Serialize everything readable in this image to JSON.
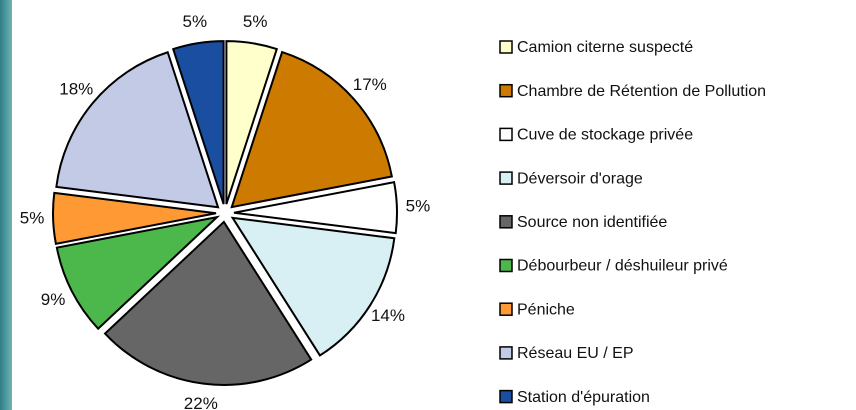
{
  "chart_data": {
    "type": "pie",
    "categories": [
      "Camion citerne suspecté",
      "Chambre de Rétention de Pollution",
      "Cuve de stockage privée",
      "Déversoir d'orage",
      "Source non identifiée",
      "Débourbeur / déshuileur privé",
      "Péniche",
      "Réseau EU / EP",
      "Station d'épuration"
    ],
    "values": [
      5,
      17,
      5,
      14,
      22,
      9,
      5,
      18,
      5
    ],
    "value_labels": [
      "5%",
      "17%",
      "5%",
      "14%",
      "22%",
      "9%",
      "5%",
      "18%",
      "5%"
    ],
    "colors": [
      "#ffffcc",
      "#cc7a00",
      "#ffffff",
      "#d8eff4",
      "#666666",
      "#4cb84c",
      "#ff9933",
      "#c2cae6",
      "#1a4ea0"
    ],
    "legend": "right"
  }
}
